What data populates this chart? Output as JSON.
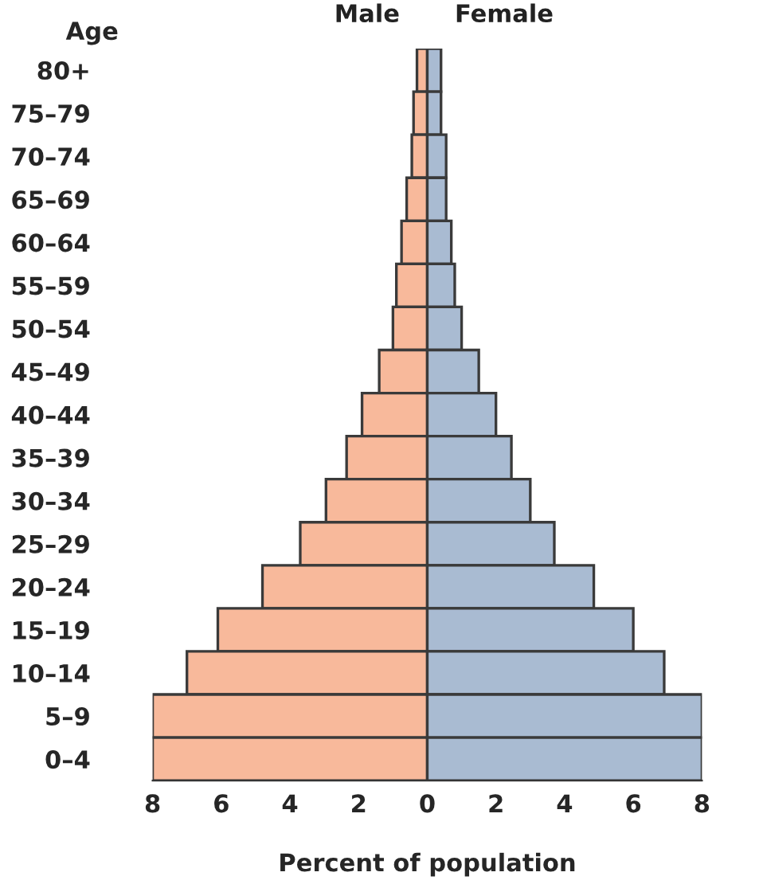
{
  "chart_data": {
    "type": "bar",
    "orientation": "horizontal",
    "stacked": true,
    "ylabel": "Age",
    "xlabel": "Percent of population",
    "categories": [
      "80+",
      "75–79",
      "70–74",
      "65–69",
      "60–64",
      "55–59",
      "50–54",
      "45–49",
      "40–44",
      "35–39",
      "30–34",
      "25–29",
      "20–24",
      "15–19",
      "10–14",
      "5–9",
      "0–4"
    ],
    "series": [
      {
        "name": "Male",
        "color": "#f8b99b",
        "values": [
          -0.3,
          -0.4,
          -0.45,
          -0.6,
          -0.75,
          -0.9,
          -1.0,
          -1.4,
          -1.9,
          -2.35,
          -2.95,
          -3.7,
          -4.8,
          -6.1,
          -7.0,
          -8.0,
          -8.0
        ]
      },
      {
        "name": "Female",
        "color": "#a9bbd2",
        "values": [
          0.4,
          0.4,
          0.55,
          0.55,
          0.7,
          0.8,
          1.0,
          1.5,
          2.0,
          2.45,
          3.0,
          3.7,
          4.85,
          6.0,
          6.9,
          8.0,
          8.0
        ]
      }
    ],
    "xlim": [
      -8,
      8
    ],
    "xticks": [
      {
        "value": -8,
        "label": "8"
      },
      {
        "value": -6,
        "label": "6"
      },
      {
        "value": -4,
        "label": "4"
      },
      {
        "value": -2,
        "label": "2"
      },
      0,
      2,
      4,
      6,
      8
    ],
    "grid": false,
    "legend": false
  }
}
